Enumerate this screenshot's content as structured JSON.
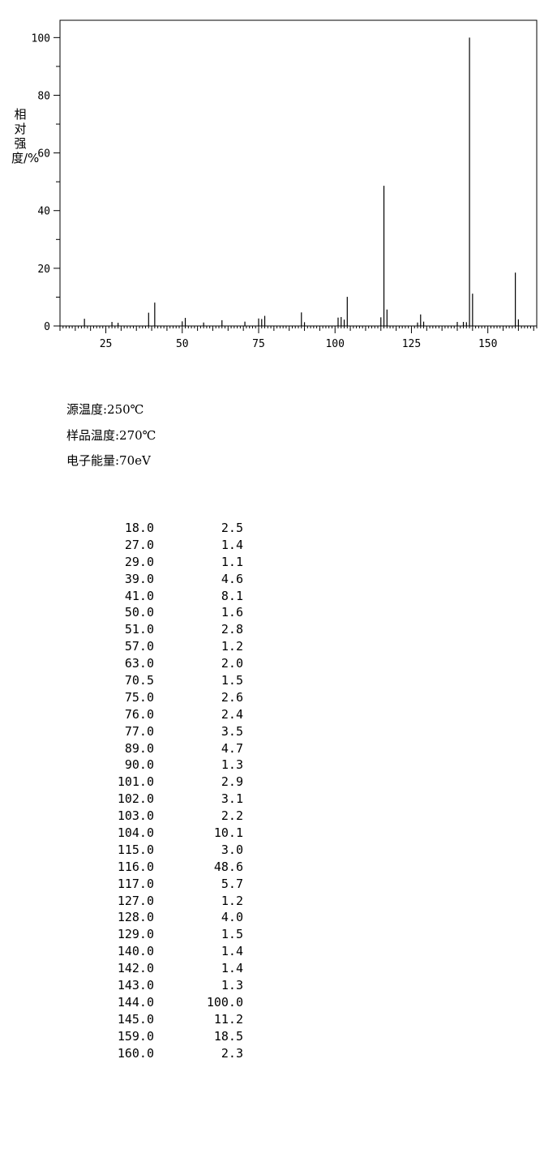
{
  "chart_data": {
    "type": "bar",
    "ylabel": "相对强度/%",
    "xlabel": "",
    "xlim": [
      10,
      166
    ],
    "ylim": [
      0,
      106
    ],
    "x_ticks": [
      25,
      50,
      75,
      100,
      125,
      150
    ],
    "y_ticks": [
      0,
      20,
      40,
      60,
      80,
      100
    ],
    "grid": false,
    "bar_color": "#000000",
    "x": [
      18.0,
      27.0,
      29.0,
      39.0,
      41.0,
      50.0,
      51.0,
      57.0,
      63.0,
      70.5,
      75.0,
      76.0,
      77.0,
      89.0,
      90.0,
      101.0,
      102.0,
      103.0,
      104.0,
      115.0,
      116.0,
      117.0,
      127.0,
      128.0,
      129.0,
      140.0,
      142.0,
      143.0,
      144.0,
      145.0,
      159.0,
      160.0
    ],
    "values": [
      2.5,
      1.4,
      1.1,
      4.6,
      8.1,
      1.6,
      2.8,
      1.2,
      2.0,
      1.5,
      2.6,
      2.4,
      3.5,
      4.7,
      1.3,
      2.9,
      3.1,
      2.2,
      10.1,
      3.0,
      48.6,
      5.7,
      1.2,
      4.0,
      1.5,
      1.4,
      1.4,
      1.3,
      100.0,
      11.2,
      18.5,
      2.3
    ]
  },
  "conditions": [
    "源温度:250℃",
    "样品温度:270℃",
    "电子能量:70eV"
  ],
  "peak_table": [
    {
      "mz": "18.0",
      "abundance": "2.5"
    },
    {
      "mz": "27.0",
      "abundance": "1.4"
    },
    {
      "mz": "29.0",
      "abundance": "1.1"
    },
    {
      "mz": "39.0",
      "abundance": "4.6"
    },
    {
      "mz": "41.0",
      "abundance": "8.1"
    },
    {
      "mz": "50.0",
      "abundance": "1.6"
    },
    {
      "mz": "51.0",
      "abundance": "2.8"
    },
    {
      "mz": "57.0",
      "abundance": "1.2"
    },
    {
      "mz": "63.0",
      "abundance": "2.0"
    },
    {
      "mz": "70.5",
      "abundance": "1.5"
    },
    {
      "mz": "75.0",
      "abundance": "2.6"
    },
    {
      "mz": "76.0",
      "abundance": "2.4"
    },
    {
      "mz": "77.0",
      "abundance": "3.5"
    },
    {
      "mz": "89.0",
      "abundance": "4.7"
    },
    {
      "mz": "90.0",
      "abundance": "1.3"
    },
    {
      "mz": "101.0",
      "abundance": "2.9"
    },
    {
      "mz": "102.0",
      "abundance": "3.1"
    },
    {
      "mz": "103.0",
      "abundance": "2.2"
    },
    {
      "mz": "104.0",
      "abundance": "10.1"
    },
    {
      "mz": "115.0",
      "abundance": "3.0"
    },
    {
      "mz": "116.0",
      "abundance": "48.6"
    },
    {
      "mz": "117.0",
      "abundance": "5.7"
    },
    {
      "mz": "127.0",
      "abundance": "1.2"
    },
    {
      "mz": "128.0",
      "abundance": "4.0"
    },
    {
      "mz": "129.0",
      "abundance": "1.5"
    },
    {
      "mz": "140.0",
      "abundance": "1.4"
    },
    {
      "mz": "142.0",
      "abundance": "1.4"
    },
    {
      "mz": "143.0",
      "abundance": "1.3"
    },
    {
      "mz": "144.0",
      "abundance": "100.0"
    },
    {
      "mz": "145.0",
      "abundance": "11.2"
    },
    {
      "mz": "159.0",
      "abundance": "18.5"
    },
    {
      "mz": "160.0",
      "abundance": "2.3"
    }
  ]
}
